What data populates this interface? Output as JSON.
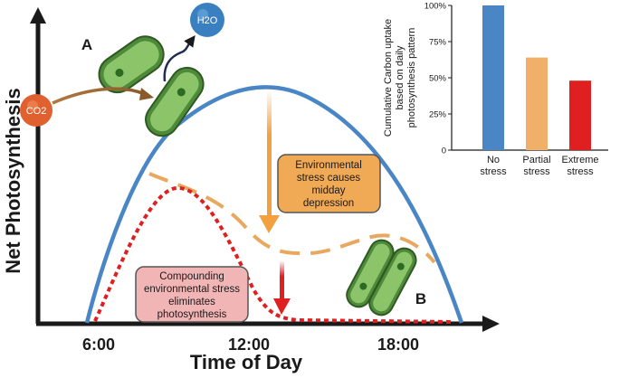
{
  "main_chart": {
    "y_axis_label": "Net Photosynthesis",
    "x_axis_label": "Time of Day",
    "x_ticks": [
      "6:00",
      "12:00",
      "18:00"
    ],
    "stomata_labels": {
      "open": "A",
      "closed": "B"
    },
    "molecules": {
      "co2": "CO2",
      "h2o": "H2O"
    },
    "callouts": {
      "midday": [
        "Environmental",
        "stress causes",
        "midday",
        "depression"
      ],
      "compound": [
        "Compounding",
        "environmental stress",
        "eliminates",
        "photosynthesis"
      ]
    },
    "colors": {
      "no_stress": "#4a86c5",
      "partial_stress": "#e8a860",
      "extreme_stress": "#e02020",
      "stoma_green": "#6aa84f",
      "co2": "#e06030",
      "h2o": "#3a7fc0"
    },
    "icons": [
      "open-stoma-icon",
      "closed-stoma-icon",
      "co2-molecule-icon",
      "h2o-molecule-icon"
    ]
  },
  "chart_data": {
    "type": "bar",
    "ylabel": "Cumulative Carbon uptake based on daily photosynthesis pattern",
    "categories": [
      "No stress",
      "Partial stress",
      "Extreme stress"
    ],
    "category_lines": [
      [
        "No",
        "stress"
      ],
      [
        "Partial",
        "stress"
      ],
      [
        "Extreme",
        "stress"
      ]
    ],
    "values": [
      100,
      64,
      48
    ],
    "ylim": [
      0,
      100
    ],
    "yticks": [
      0,
      25,
      50,
      75,
      100
    ],
    "ytick_labels": [
      "0",
      "25%",
      "50%",
      "75%",
      "100%"
    ],
    "colors": [
      "#4a86c5",
      "#f0b06a",
      "#e02020"
    ],
    "ylabel_lines": [
      "Cumulative Carbon uptake",
      "based on daily",
      "photosynthesis pattern"
    ]
  }
}
